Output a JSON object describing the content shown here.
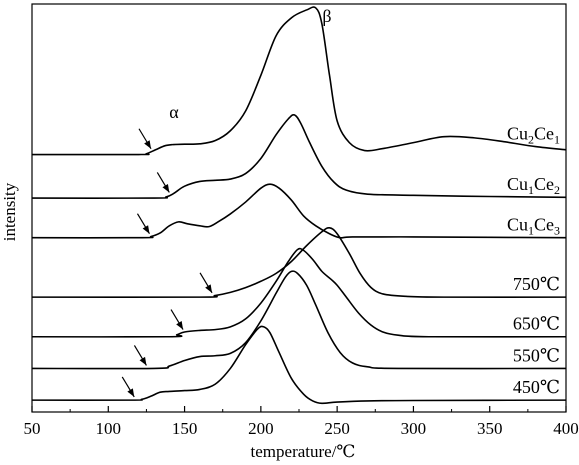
{
  "chart_data": {
    "type": "line",
    "title": "",
    "xlabel": "temperature/℃",
    "ylabel": "intensity",
    "xlim": [
      50,
      400
    ],
    "x_ticks": [
      50,
      100,
      150,
      200,
      250,
      300,
      350,
      400
    ],
    "grid": false,
    "legend": "labels at right end of each curve",
    "annotations": [
      {
        "label": "α",
        "x": 145
      },
      {
        "label": "β",
        "x": 240
      }
    ],
    "arrows_x": [
      128,
      140,
      127,
      168,
      149,
      125,
      117
    ],
    "series": [
      {
        "name": "Cu2Ce1",
        "label_main_1": "Cu",
        "label_sub_1": "2",
        "label_main_2": "Ce",
        "label_sub_2": "1",
        "offset": 6.2,
        "points": [
          [
            50,
            0
          ],
          [
            120,
            0
          ],
          [
            125,
            0.02
          ],
          [
            131,
            0.12
          ],
          [
            137,
            0.22
          ],
          [
            142,
            0.25
          ],
          [
            150,
            0.26
          ],
          [
            160,
            0.27
          ],
          [
            170,
            0.35
          ],
          [
            180,
            0.6
          ],
          [
            190,
            1.1
          ],
          [
            200,
            2.0
          ],
          [
            210,
            3.0
          ],
          [
            220,
            3.45
          ],
          [
            230,
            3.65
          ],
          [
            236,
            3.7
          ],
          [
            240,
            3.3
          ],
          [
            245,
            2.0
          ],
          [
            250,
            0.85
          ],
          [
            258,
            0.3
          ],
          [
            268,
            0.1
          ],
          [
            280,
            0.15
          ],
          [
            300,
            0.3
          ],
          [
            320,
            0.45
          ],
          [
            340,
            0.42
          ],
          [
            360,
            0.32
          ],
          [
            380,
            0.2
          ],
          [
            400,
            0.12
          ]
        ]
      },
      {
        "name": "Cu1Ce2",
        "label_main_1": "Cu",
        "label_sub_1": "1",
        "label_main_2": "Ce",
        "label_sub_2": "2",
        "offset": 5.1,
        "points": [
          [
            50,
            0
          ],
          [
            130,
            0
          ],
          [
            138,
            0.03
          ],
          [
            143,
            0.12
          ],
          [
            150,
            0.3
          ],
          [
            160,
            0.42
          ],
          [
            170,
            0.45
          ],
          [
            180,
            0.48
          ],
          [
            190,
            0.62
          ],
          [
            200,
            1.0
          ],
          [
            210,
            1.6
          ],
          [
            218,
            2.0
          ],
          [
            222,
            2.1
          ],
          [
            226,
            1.9
          ],
          [
            232,
            1.4
          ],
          [
            240,
            0.8
          ],
          [
            248,
            0.4
          ],
          [
            256,
            0.2
          ],
          [
            270,
            0.1
          ],
          [
            300,
            0.07
          ],
          [
            350,
            0.04
          ],
          [
            400,
            0.02
          ]
        ]
      },
      {
        "name": "Cu1Ce3",
        "label_main_1": "Cu",
        "label_sub_1": "1",
        "label_main_2": "Ce",
        "label_sub_2": "3",
        "offset": 4.1,
        "points": [
          [
            50,
            0
          ],
          [
            122,
            0
          ],
          [
            128,
            0.03
          ],
          [
            134,
            0.12
          ],
          [
            140,
            0.3
          ],
          [
            146,
            0.4
          ],
          [
            152,
            0.35
          ],
          [
            160,
            0.3
          ],
          [
            166,
            0.28
          ],
          [
            172,
            0.4
          ],
          [
            180,
            0.6
          ],
          [
            190,
            0.9
          ],
          [
            200,
            1.25
          ],
          [
            206,
            1.35
          ],
          [
            212,
            1.25
          ],
          [
            220,
            0.95
          ],
          [
            228,
            0.55
          ],
          [
            236,
            0.3
          ],
          [
            245,
            0.1
          ],
          [
            252,
            0.0
          ],
          [
            260,
            0.02
          ],
          [
            300,
            0.02
          ],
          [
            350,
            0.01
          ],
          [
            400,
            0.0
          ]
        ]
      },
      {
        "name": "750℃",
        "label_main_1": "750℃",
        "offset": 2.6,
        "points": [
          [
            50,
            0
          ],
          [
            160,
            0
          ],
          [
            170,
            0.04
          ],
          [
            180,
            0.12
          ],
          [
            190,
            0.24
          ],
          [
            200,
            0.4
          ],
          [
            210,
            0.6
          ],
          [
            220,
            0.9
          ],
          [
            230,
            1.3
          ],
          [
            240,
            1.65
          ],
          [
            245,
            1.75
          ],
          [
            250,
            1.6
          ],
          [
            258,
            1.1
          ],
          [
            265,
            0.6
          ],
          [
            272,
            0.25
          ],
          [
            280,
            0.08
          ],
          [
            295,
            0.02
          ],
          [
            320,
            0.0
          ],
          [
            400,
            0.0
          ]
        ]
      },
      {
        "name": "650℃",
        "label_main_1": "650℃",
        "offset": 1.6,
        "points": [
          [
            50,
            0
          ],
          [
            140,
            0
          ],
          [
            145,
            0.05
          ],
          [
            150,
            0.12
          ],
          [
            160,
            0.16
          ],
          [
            170,
            0.18
          ],
          [
            180,
            0.25
          ],
          [
            190,
            0.45
          ],
          [
            200,
            0.85
          ],
          [
            210,
            1.4
          ],
          [
            218,
            1.9
          ],
          [
            224,
            2.2
          ],
          [
            228,
            2.18
          ],
          [
            234,
            1.95
          ],
          [
            240,
            1.65
          ],
          [
            246,
            1.45
          ],
          [
            250,
            1.3
          ],
          [
            256,
            1.0
          ],
          [
            264,
            0.6
          ],
          [
            272,
            0.3
          ],
          [
            280,
            0.12
          ],
          [
            290,
            0.04
          ],
          [
            310,
            0.0
          ],
          [
            400,
            0.0
          ]
        ]
      },
      {
        "name": "550℃",
        "label_main_1": "550℃",
        "offset": 0.8,
        "points": [
          [
            50,
            0
          ],
          [
            130,
            0
          ],
          [
            140,
            0.06
          ],
          [
            150,
            0.2
          ],
          [
            160,
            0.3
          ],
          [
            170,
            0.32
          ],
          [
            180,
            0.38
          ],
          [
            190,
            0.65
          ],
          [
            200,
            1.2
          ],
          [
            210,
            1.9
          ],
          [
            216,
            2.3
          ],
          [
            220,
            2.45
          ],
          [
            224,
            2.4
          ],
          [
            230,
            2.1
          ],
          [
            236,
            1.6
          ],
          [
            244,
            0.9
          ],
          [
            252,
            0.4
          ],
          [
            260,
            0.14
          ],
          [
            270,
            0.04
          ],
          [
            290,
            0.0
          ],
          [
            400,
            0.0
          ]
        ]
      },
      {
        "name": "450℃",
        "label_main_1": "450℃",
        "offset": 0.0,
        "points": [
          [
            50,
            0
          ],
          [
            115,
            0
          ],
          [
            122,
            0.02
          ],
          [
            128,
            0.1
          ],
          [
            134,
            0.2
          ],
          [
            140,
            0.22
          ],
          [
            150,
            0.24
          ],
          [
            160,
            0.27
          ],
          [
            170,
            0.4
          ],
          [
            180,
            0.8
          ],
          [
            190,
            1.4
          ],
          [
            198,
            1.8
          ],
          [
            202,
            1.85
          ],
          [
            206,
            1.7
          ],
          [
            212,
            1.2
          ],
          [
            220,
            0.55
          ],
          [
            228,
            0.15
          ],
          [
            234,
            -0.02
          ],
          [
            240,
            -0.08
          ],
          [
            250,
            -0.05
          ],
          [
            270,
            -0.02
          ],
          [
            300,
            -0.01
          ],
          [
            400,
            0.0
          ]
        ]
      }
    ]
  }
}
